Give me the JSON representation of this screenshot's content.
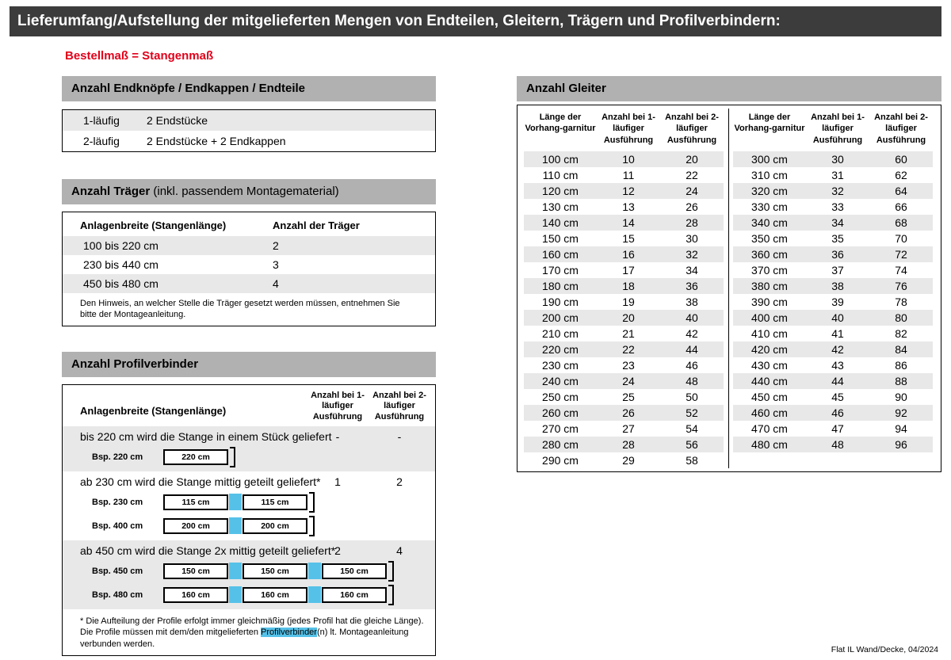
{
  "page": {
    "title": "Lieferumfang/Aufstellung der mitgelieferten Mengen von Endteilen, Gleitern, Trägern und Profilverbindern:",
    "subtitle": "Bestellmaß = Stangenmaß",
    "footer": "Flat IL Wand/Decke, 04/2024"
  },
  "colors": {
    "accent_red": "#e2001a",
    "title_bar_dark": "#3c3c3c",
    "section_header_gray": "#b1b1b1",
    "row_gray": "#e8e8e8",
    "connector_cyan": "#55c1e8"
  },
  "endteile": {
    "title": "Anzahl Endknöpfe / Endkappen / Endteile",
    "rows": [
      {
        "label": "1-läufig",
        "value": "2 Endstücke"
      },
      {
        "label": "2-läufig",
        "value": "2 Endstücke + 2 Endkappen"
      }
    ]
  },
  "traeger": {
    "title": "Anzahl Träger",
    "title_note": " (inkl. passendem Montagematerial)",
    "col_width": "Anlagenbreite (Stangenlänge)",
    "col_count": "Anzahl der Träger",
    "rows": [
      {
        "range": "100 bis 220 cm",
        "count": "2"
      },
      {
        "range": "230 bis 440 cm",
        "count": "3"
      },
      {
        "range": "450 bis 480 cm",
        "count": "4"
      }
    ],
    "note": "Den Hinweis, an welcher Stelle die Träger gesetzt werden müssen, entnehmen Sie bitte der Montageanleitung."
  },
  "profilverbinder": {
    "title": "Anzahl Profilverbinder",
    "col_width": "Anlagenbreite (Stangenlänge)",
    "col_1": "Anzahl bei 1-läufiger Ausführung",
    "col_2": "Anzahl bei 2-läufiger Ausführung",
    "sections": [
      {
        "text": "bis 220 cm wird die Stange in einem Stück geliefert",
        "val1": "-",
        "val2": "-",
        "examples": [
          {
            "label": "Bsp. 220 cm",
            "segments": [
              "220 cm"
            ]
          }
        ]
      },
      {
        "text": "ab 230 cm wird die Stange mittig geteilt geliefert*",
        "val1": "1",
        "val2": "2",
        "examples": [
          {
            "label": "Bsp. 230 cm",
            "segments": [
              "115 cm",
              "115 cm"
            ]
          },
          {
            "label": "Bsp. 400 cm",
            "segments": [
              "200 cm",
              "200 cm"
            ]
          }
        ]
      },
      {
        "text": "ab 450 cm wird die Stange 2x mittig geteilt geliefert*",
        "val1": "2",
        "val2": "4",
        "examples": [
          {
            "label": "Bsp. 450 cm",
            "segments": [
              "150 cm",
              "150 cm",
              "150 cm"
            ]
          },
          {
            "label": "Bsp. 480 cm",
            "segments": [
              "160 cm",
              "160 cm",
              "160 cm"
            ]
          }
        ]
      }
    ],
    "footnote_pre": "* Die Aufteilung der Profile erfolgt immer gleichmäßig (jedes Profil hat die gleiche Länge). Die Profile müssen mit dem/den mitgelieferten ",
    "footnote_highlight": "Profilverbinder",
    "footnote_post": "(n) lt. Montageanleitung verbunden werden."
  },
  "gleiter": {
    "title": "Anzahl Gleiter",
    "col_len": "Länge der Vorhang-garnitur",
    "col_1": "Anzahl bei 1-läufiger Ausführung",
    "col_2": "Anzahl bei 2-läufiger Ausführung",
    "left_rows": [
      {
        "len": "100 cm",
        "v1": "10",
        "v2": "20"
      },
      {
        "len": "110 cm",
        "v1": "11",
        "v2": "22"
      },
      {
        "len": "120 cm",
        "v1": "12",
        "v2": "24"
      },
      {
        "len": "130 cm",
        "v1": "13",
        "v2": "26"
      },
      {
        "len": "140 cm",
        "v1": "14",
        "v2": "28"
      },
      {
        "len": "150 cm",
        "v1": "15",
        "v2": "30"
      },
      {
        "len": "160 cm",
        "v1": "16",
        "v2": "32"
      },
      {
        "len": "170 cm",
        "v1": "17",
        "v2": "34"
      },
      {
        "len": "180 cm",
        "v1": "18",
        "v2": "36"
      },
      {
        "len": "190 cm",
        "v1": "19",
        "v2": "38"
      },
      {
        "len": "200 cm",
        "v1": "20",
        "v2": "40"
      },
      {
        "len": "210 cm",
        "v1": "21",
        "v2": "42"
      },
      {
        "len": "220 cm",
        "v1": "22",
        "v2": "44"
      },
      {
        "len": "230 cm",
        "v1": "23",
        "v2": "46"
      },
      {
        "len": "240 cm",
        "v1": "24",
        "v2": "48"
      },
      {
        "len": "250 cm",
        "v1": "25",
        "v2": "50"
      },
      {
        "len": "260 cm",
        "v1": "26",
        "v2": "52"
      },
      {
        "len": "270 cm",
        "v1": "27",
        "v2": "54"
      },
      {
        "len": "280 cm",
        "v1": "28",
        "v2": "56"
      },
      {
        "len": "290 cm",
        "v1": "29",
        "v2": "58"
      }
    ],
    "right_rows": [
      {
        "len": "300 cm",
        "v1": "30",
        "v2": "60"
      },
      {
        "len": "310 cm",
        "v1": "31",
        "v2": "62"
      },
      {
        "len": "320 cm",
        "v1": "32",
        "v2": "64"
      },
      {
        "len": "330 cm",
        "v1": "33",
        "v2": "66"
      },
      {
        "len": "340 cm",
        "v1": "34",
        "v2": "68"
      },
      {
        "len": "350 cm",
        "v1": "35",
        "v2": "70"
      },
      {
        "len": "360 cm",
        "v1": "36",
        "v2": "72"
      },
      {
        "len": "370 cm",
        "v1": "37",
        "v2": "74"
      },
      {
        "len": "380 cm",
        "v1": "38",
        "v2": "76"
      },
      {
        "len": "390 cm",
        "v1": "39",
        "v2": "78"
      },
      {
        "len": "400 cm",
        "v1": "40",
        "v2": "80"
      },
      {
        "len": "410 cm",
        "v1": "41",
        "v2": "82"
      },
      {
        "len": "420 cm",
        "v1": "42",
        "v2": "84"
      },
      {
        "len": "430 cm",
        "v1": "43",
        "v2": "86"
      },
      {
        "len": "440 cm",
        "v1": "44",
        "v2": "88"
      },
      {
        "len": "450 cm",
        "v1": "45",
        "v2": "90"
      },
      {
        "len": "460 cm",
        "v1": "46",
        "v2": "92"
      },
      {
        "len": "470 cm",
        "v1": "47",
        "v2": "94"
      },
      {
        "len": "480 cm",
        "v1": "48",
        "v2": "96"
      }
    ]
  }
}
